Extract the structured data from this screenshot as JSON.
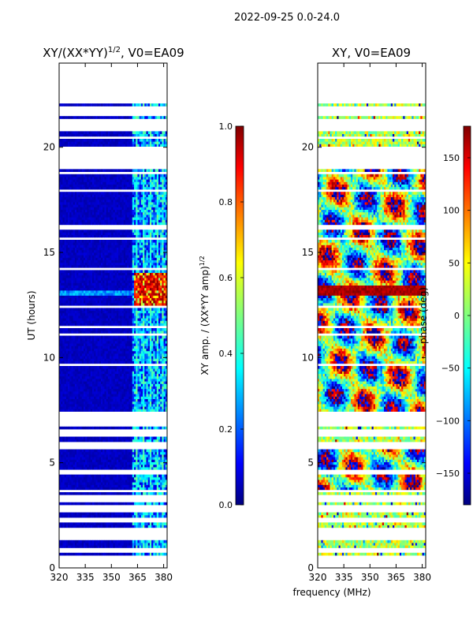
{
  "figure": {
    "suptitle": "2022-09-25 0.0-24.0"
  },
  "chart_data": [
    {
      "type": "heatmap",
      "title": "XY/(XX*YY)",
      "title_exponent": "1/2",
      "title_suffix": ", V0=EA09",
      "xlabel": "",
      "ylabel": "UT (hours)",
      "xlim": [
        320,
        382
      ],
      "ylim": [
        0,
        24
      ],
      "xticks": [
        "320",
        "335",
        "350",
        "365",
        "380"
      ],
      "yticks": [
        "0",
        "5",
        "10",
        "15",
        "20"
      ],
      "colorbar": {
        "label": "XY amp. / (XX*YY amp)",
        "label_exponent": "1/2",
        "range": [
          0.0,
          1.0
        ],
        "ticks": [
          "0.0",
          "0.2",
          "0.4",
          "0.6",
          "0.8",
          "1.0"
        ]
      },
      "notes": "Mostly low (~0.05) amplitude below 363 MHz; speckled 0.2-0.5 above 363 MHz; high (~0.8-1.0) patch near 13 h at 363-381 MHz; many flagged (blank) time rows."
    },
    {
      "type": "heatmap",
      "title": "XY, V0=EA09",
      "xlabel": "frequency (MHz)",
      "ylabel": "",
      "xlim": [
        320,
        382
      ],
      "ylim": [
        0,
        24
      ],
      "xticks": [
        "320",
        "335",
        "350",
        "365",
        "380"
      ],
      "yticks": [
        "0",
        "5",
        "10",
        "15",
        "20"
      ],
      "colorbar": {
        "label": "phase (deg)",
        "range": [
          -180,
          180
        ],
        "ticks": [
          "−150",
          "−100",
          "−50",
          "0",
          "50",
          "100",
          "150"
        ]
      },
      "notes": "Noisy phase spanning full -180..180 range with large coherent patches between ~7 and ~19 h; many flagged (blank) time rows."
    }
  ],
  "colors": {
    "jet": [
      "#00007f",
      "#0000ff",
      "#007fff",
      "#00ffff",
      "#7fff7f",
      "#ffff00",
      "#ff7f00",
      "#ff0000",
      "#7f0000"
    ],
    "blank": "#ffffff",
    "axis": "#000000"
  }
}
